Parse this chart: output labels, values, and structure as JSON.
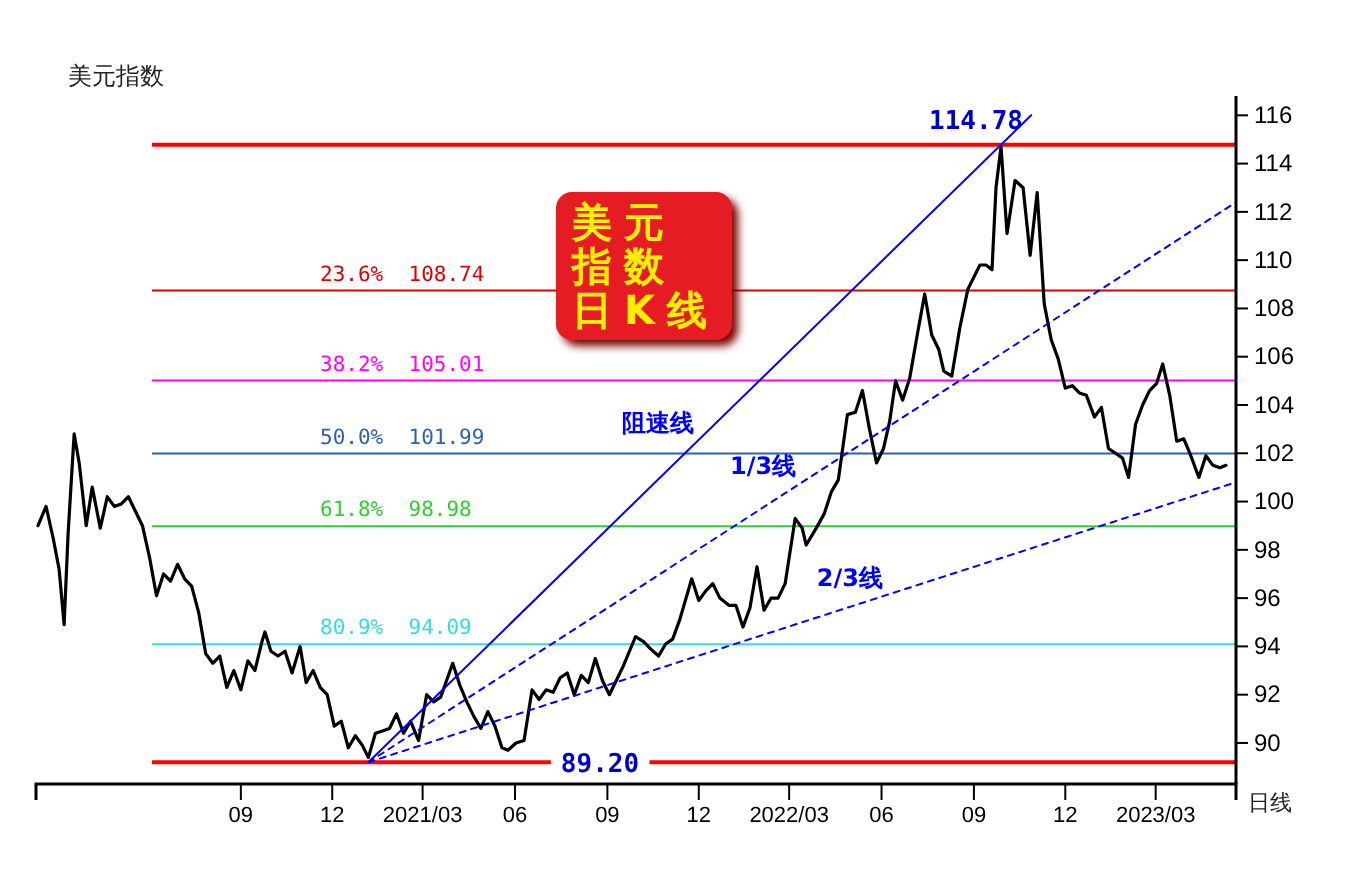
{
  "chart_data": {
    "type": "line",
    "title": "美元指数",
    "annotations": [
      "美元指数日K线",
      "日线"
    ],
    "xlim": [
      "2020-02-10",
      "2023-05-20"
    ],
    "xticks": [
      {
        "value": "2020-09",
        "label": "09"
      },
      {
        "value": "2020-12",
        "label": "12"
      },
      {
        "value": "2021-03",
        "label": "2021/03"
      },
      {
        "value": "2021-06",
        "label": "06"
      },
      {
        "value": "2021-09",
        "label": "09"
      },
      {
        "value": "2021-12",
        "label": "12"
      },
      {
        "value": "2022-03",
        "label": "2022/03"
      },
      {
        "value": "2022-06",
        "label": "06"
      },
      {
        "value": "2022-09",
        "label": "09"
      },
      {
        "value": "2022-12",
        "label": "12"
      },
      {
        "value": "2023-03",
        "label": "2023/03"
      }
    ],
    "ylim": [
      88.3,
      116.8
    ],
    "yticks": [
      90,
      92,
      94,
      96,
      98,
      100,
      102,
      104,
      106,
      108,
      110,
      112,
      114,
      116
    ],
    "ref_lines": [
      {
        "axis": "y",
        "value": 114.78,
        "label": "114.78",
        "color": "#ff0000"
      },
      {
        "axis": "y",
        "value": 108.74,
        "label": "23.6%  108.74",
        "color": "#dd0000"
      },
      {
        "axis": "y",
        "value": 105.01,
        "label": "38.2%  105.01",
        "color": "#ff00ff"
      },
      {
        "axis": "y",
        "value": 101.99,
        "label": "50.0%  101.99",
        "color": "#3060b0"
      },
      {
        "axis": "y",
        "value": 98.98,
        "label": "61.8%  98.98",
        "color": "#33cc33"
      },
      {
        "axis": "y",
        "value": 94.09,
        "label": "80.9%  94.09",
        "color": "#33dddd"
      },
      {
        "axis": "y",
        "value": 89.2,
        "label": "89.20",
        "color": "#ff0000"
      }
    ],
    "series": [
      {
        "color": "#000000",
        "line_style": "solid",
        "x": [
          "2020-02-12",
          "2020-02-20",
          "2020-02-27",
          "2020-03-04",
          "2020-03-09",
          "2020-03-13",
          "2020-03-19",
          "2020-03-24",
          "2020-03-31",
          "2020-04-06",
          "2020-04-14",
          "2020-04-21",
          "2020-04-28",
          "2020-05-05",
          "2020-05-12",
          "2020-05-19",
          "2020-05-26",
          "2020-06-02",
          "2020-06-09",
          "2020-06-16",
          "2020-06-23",
          "2020-06-30",
          "2020-07-07",
          "2020-07-14",
          "2020-07-21",
          "2020-07-28",
          "2020-08-04",
          "2020-08-11",
          "2020-08-18",
          "2020-08-25",
          "2020-09-01",
          "2020-09-08",
          "2020-09-15",
          "2020-09-22",
          "2020-09-25",
          "2020-10-01",
          "2020-10-08",
          "2020-10-15",
          "2020-10-22",
          "2020-10-30",
          "2020-11-05",
          "2020-11-12",
          "2020-11-19",
          "2020-11-26",
          "2020-12-03",
          "2020-12-10",
          "2020-12-17",
          "2020-12-24",
          "2020-12-31",
          "2021-01-06",
          "2021-01-13",
          "2021-01-20",
          "2021-01-27",
          "2021-02-03",
          "2021-02-10",
          "2021-02-17",
          "2021-02-25",
          "2021-03-05",
          "2021-03-12",
          "2021-03-19",
          "2021-03-31",
          "2021-04-07",
          "2021-04-14",
          "2021-04-21",
          "2021-04-28",
          "2021-05-05",
          "2021-05-12",
          "2021-05-19",
          "2021-05-25",
          "2021-06-02",
          "2021-06-10",
          "2021-06-18",
          "2021-06-25",
          "2021-07-02",
          "2021-07-09",
          "2021-07-16",
          "2021-07-23",
          "2021-07-30",
          "2021-08-06",
          "2021-08-13",
          "2021-08-20",
          "2021-08-27",
          "2021-09-03",
          "2021-09-10",
          "2021-09-17",
          "2021-09-29",
          "2021-10-07",
          "2021-10-14",
          "2021-10-22",
          "2021-10-29",
          "2021-11-05",
          "2021-11-12",
          "2021-11-24",
          "2021-12-01",
          "2021-12-08",
          "2021-12-15",
          "2021-12-22",
          "2021-12-31",
          "2022-01-07",
          "2022-01-14",
          "2022-01-21",
          "2022-01-28",
          "2022-02-04",
          "2022-02-11",
          "2022-02-18",
          "2022-02-25",
          "2022-03-07",
          "2022-03-14",
          "2022-03-18",
          "2022-03-28",
          "2022-04-05",
          "2022-04-12",
          "2022-04-19",
          "2022-04-28",
          "2022-05-06",
          "2022-05-13",
          "2022-05-20",
          "2022-05-27",
          "2022-06-03",
          "2022-06-09",
          "2022-06-15",
          "2022-06-22",
          "2022-06-29",
          "2022-07-07",
          "2022-07-14",
          "2022-07-21",
          "2022-07-28",
          "2022-08-02",
          "2022-08-10",
          "2022-08-18",
          "2022-08-26",
          "2022-09-07",
          "2022-09-13",
          "2022-09-19",
          "2022-09-23",
          "2022-09-28",
          "2022-10-04",
          "2022-10-12",
          "2022-10-20",
          "2022-10-27",
          "2022-11-03",
          "2022-11-10",
          "2022-11-17",
          "2022-11-24",
          "2022-12-01",
          "2022-12-08",
          "2022-12-15",
          "2022-12-22",
          "2022-12-30",
          "2023-01-06",
          "2023-01-13",
          "2023-01-20",
          "2023-01-27",
          "2023-02-02",
          "2023-02-09",
          "2023-02-16",
          "2023-02-23",
          "2023-03-02",
          "2023-03-08",
          "2023-03-15",
          "2023-03-22",
          "2023-03-29",
          "2023-04-05",
          "2023-04-13",
          "2023-04-20",
          "2023-04-27",
          "2023-05-04",
          "2023-05-10"
        ],
        "values": [
          99.0,
          99.8,
          98.5,
          97.2,
          94.9,
          98.7,
          102.8,
          101.6,
          99.0,
          100.6,
          98.9,
          100.2,
          99.8,
          99.9,
          100.2,
          99.6,
          99.0,
          97.7,
          96.1,
          97.0,
          96.7,
          97.4,
          96.8,
          96.5,
          95.4,
          93.7,
          93.3,
          93.6,
          92.3,
          93.0,
          92.2,
          93.4,
          93.0,
          94.2,
          94.6,
          93.8,
          93.6,
          93.8,
          92.9,
          94.0,
          92.5,
          93.0,
          92.3,
          92.0,
          90.7,
          90.9,
          89.8,
          90.3,
          89.9,
          89.4,
          90.4,
          90.5,
          90.6,
          91.2,
          90.4,
          90.9,
          90.1,
          92.0,
          91.7,
          91.9,
          93.3,
          92.4,
          91.7,
          91.1,
          90.6,
          91.3,
          90.7,
          89.8,
          89.7,
          90.0,
          90.1,
          92.2,
          91.8,
          92.2,
          92.1,
          92.7,
          92.9,
          92.0,
          92.8,
          92.5,
          93.5,
          92.6,
          92.0,
          92.6,
          93.2,
          94.4,
          94.2,
          93.9,
          93.6,
          94.1,
          94.3,
          95.1,
          96.8,
          95.9,
          96.3,
          96.6,
          96.0,
          95.7,
          95.7,
          94.8,
          95.6,
          97.3,
          95.5,
          96.0,
          96.0,
          96.6,
          99.3,
          98.9,
          98.2,
          98.9,
          99.5,
          100.4,
          100.9,
          103.6,
          103.7,
          104.6,
          103.0,
          101.6,
          102.2,
          103.3,
          105.0,
          104.2,
          105.1,
          107.0,
          108.6,
          106.9,
          106.3,
          105.4,
          105.2,
          107.2,
          108.8,
          109.8,
          109.8,
          109.6,
          113.0,
          114.7,
          111.1,
          113.3,
          113.0,
          110.2,
          112.8,
          108.2,
          106.7,
          105.9,
          104.7,
          104.8,
          104.5,
          104.4,
          103.5,
          103.9,
          102.2,
          102.0,
          101.8,
          101.0,
          103.2,
          104.0,
          104.6,
          104.9,
          105.7,
          104.4,
          102.5,
          102.6,
          101.9,
          101.0,
          101.9,
          101.5,
          101.4,
          101.5
        ]
      },
      {
        "name": "阻速线",
        "color": "#0000ff",
        "line_style": "solid",
        "x": [
          "2021-01-06",
          "2022-10-28"
        ],
        "values": [
          89.2,
          116.0
        ]
      },
      {
        "name": "1/3线",
        "color": "#0000ff",
        "line_style": "dashed",
        "x": [
          "2021-01-06",
          "2023-05-20"
        ],
        "values": [
          89.2,
          112.4
        ]
      },
      {
        "name": "2/3线",
        "color": "#0000ff",
        "line_style": "dashed",
        "x": [
          "2021-01-06",
          "2023-05-20"
        ],
        "values": [
          89.2,
          100.8
        ]
      }
    ]
  }
}
